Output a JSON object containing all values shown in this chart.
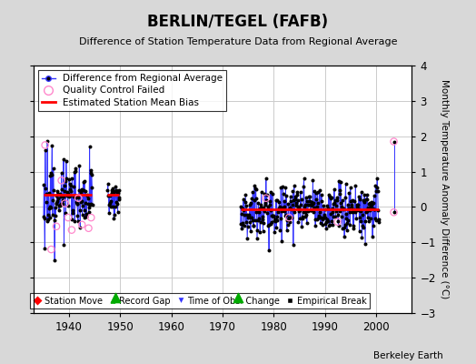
{
  "title": "BERLIN/TEGEL (FAFB)",
  "subtitle": "Difference of Station Temperature Data from Regional Average",
  "ylabel": "Monthly Temperature Anomaly Difference (°C)",
  "credit": "Berkeley Earth",
  "xlim": [
    1933,
    2007
  ],
  "ylim": [
    -3,
    4
  ],
  "yticks": [
    -3,
    -2,
    -1,
    0,
    1,
    2,
    3,
    4
  ],
  "xticks": [
    1940,
    1950,
    1960,
    1970,
    1980,
    1990,
    2000
  ],
  "bg_color": "#d8d8d8",
  "plot_bg_color": "#ffffff",
  "segment1_xstart": 1935.0,
  "segment1_xend": 1944.5,
  "segment1_bias": 0.35,
  "segment2_xstart": 1947.5,
  "segment2_xend": 1949.8,
  "segment2_bias": 0.35,
  "segment3_xstart": 1973.5,
  "segment3_xend": 2000.5,
  "segment3_bias": -0.07,
  "record_gap1_x": 1949.0,
  "record_gap2_x": 1973.0,
  "outlier_x": 2003.5,
  "outlier_y_top": 1.85,
  "outlier_y_bot": -0.15,
  "data_color": "#3333ff",
  "bias_color": "#ff0000",
  "qc_color": "#ff88cc",
  "grid_color": "#cccccc"
}
